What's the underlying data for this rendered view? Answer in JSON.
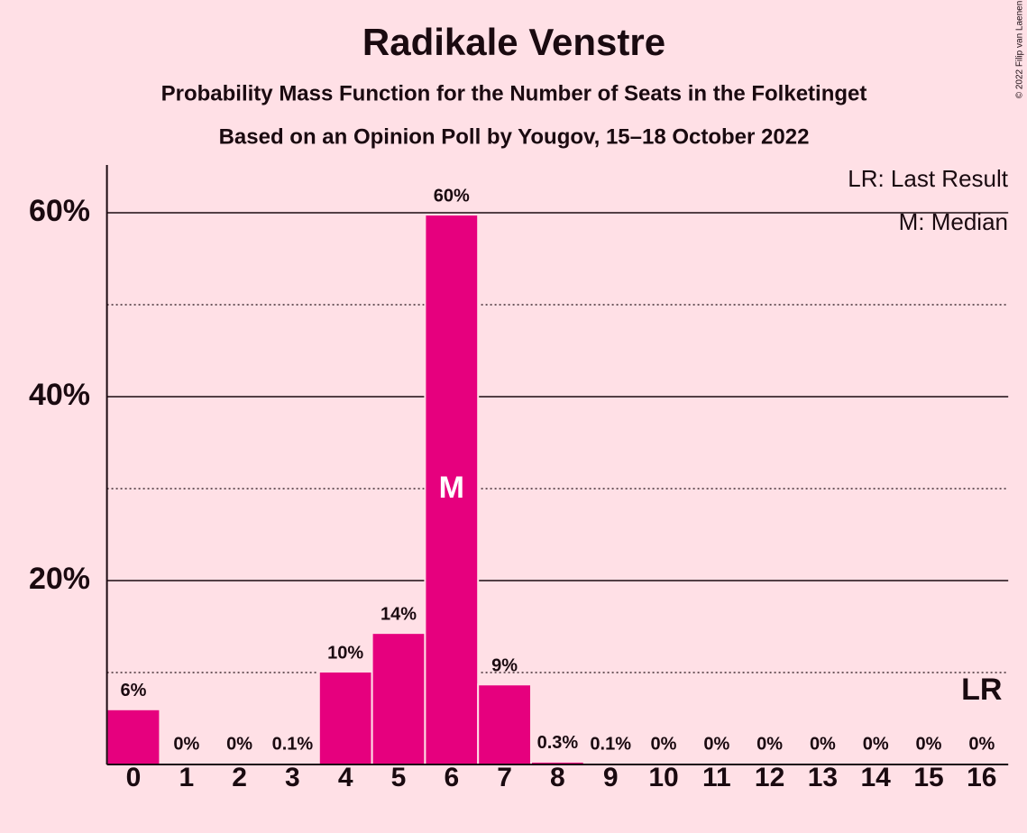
{
  "chart_data": {
    "type": "bar",
    "title": "Radikale Venstre",
    "subtitle": "Probability Mass Function for the Number of Seats in the Folketinget",
    "subtitle2": "Based on an Opinion Poll by Yougov, 15–18 October 2022",
    "copyright": "© 2022 Filip van Laenen",
    "categories": [
      "0",
      "1",
      "2",
      "3",
      "4",
      "5",
      "6",
      "7",
      "8",
      "9",
      "10",
      "11",
      "12",
      "13",
      "14",
      "15",
      "16"
    ],
    "values": [
      6,
      0,
      0,
      0.1,
      10.1,
      14.3,
      59.8,
      8.7,
      0.3,
      0.1,
      0,
      0,
      0,
      0,
      0,
      0,
      0
    ],
    "value_labels": [
      "6%",
      "0%",
      "0%",
      "0.1%",
      "10%",
      "14%",
      "60%",
      "9%",
      "0.3%",
      "0.1%",
      "0%",
      "0%",
      "0%",
      "0%",
      "0%",
      "0%",
      "0%"
    ],
    "color": "#e6007e",
    "ylim": [
      0,
      65.2
    ],
    "yticks": [
      {
        "value": 20,
        "label": "20%"
      },
      {
        "value": 40,
        "label": "40%"
      },
      {
        "value": 60,
        "label": "60%"
      }
    ],
    "minor_yticks": [
      10,
      30,
      50
    ],
    "grid": true,
    "median": "6",
    "median_label": "M",
    "last_result": "16",
    "last_result_label": "LR",
    "legend": [
      "LR: Last Result",
      "M: Median"
    ]
  }
}
